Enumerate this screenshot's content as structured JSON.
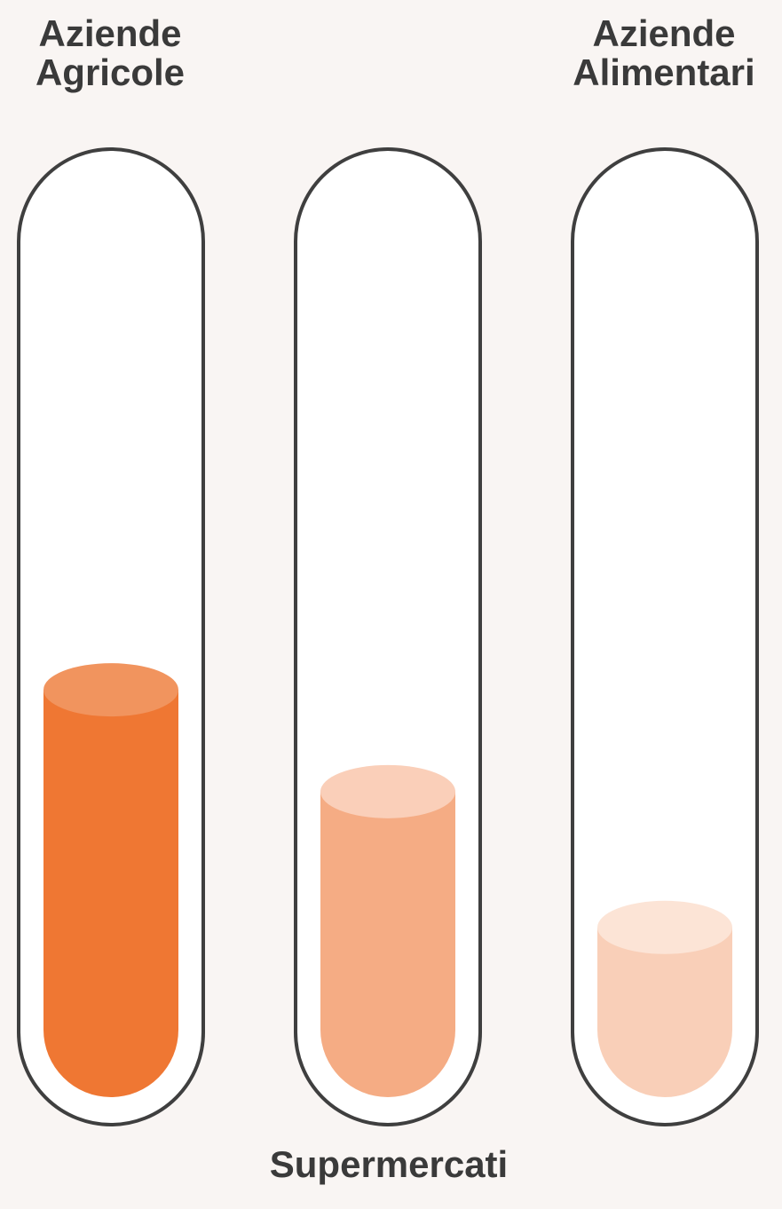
{
  "chart_data": {
    "type": "bar",
    "categories": [
      [
        "Aziende",
        "Agricole"
      ],
      [
        "Supermercati"
      ],
      [
        "Aziende",
        "Alimentari"
      ]
    ],
    "values": [
      0.48,
      0.36,
      0.2
    ],
    "colors": {
      "tube_stroke": "#3f3f3f",
      "tube_fill": "#ffffff",
      "background": "#f9f5f3",
      "liquid_bodies": [
        "#ef7733",
        "#f5ac84",
        "#f9cfb8"
      ],
      "liquid_tops": [
        "#f1945e",
        "#facfb9",
        "#fce4d6"
      ],
      "label": "#3a3a3a"
    }
  }
}
